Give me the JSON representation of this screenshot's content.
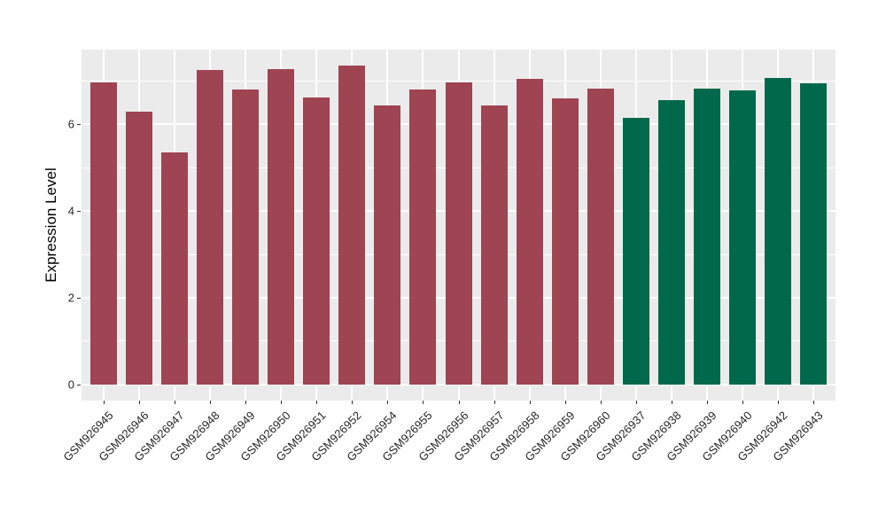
{
  "chart_data": {
    "type": "bar",
    "title": "",
    "xlabel": "",
    "ylabel": "Expression Level",
    "categories": [
      "GSM926945",
      "GSM926946",
      "GSM926947",
      "GSM926948",
      "GSM926949",
      "GSM926950",
      "GSM926951",
      "GSM926952",
      "GSM926954",
      "GSM926955",
      "GSM926956",
      "GSM926957",
      "GSM926958",
      "GSM926959",
      "GSM926960",
      "GSM926937",
      "GSM926938",
      "GSM926939",
      "GSM926940",
      "GSM926942",
      "GSM926943"
    ],
    "values": [
      6.96,
      6.29,
      5.34,
      7.25,
      6.8,
      7.27,
      6.62,
      7.35,
      6.43,
      6.8,
      6.96,
      6.43,
      7.04,
      6.6,
      6.82,
      6.15,
      6.56,
      6.82,
      6.78,
      7.06,
      6.94
    ],
    "bar_groups": [
      "group1",
      "group1",
      "group1",
      "group1",
      "group1",
      "group1",
      "group1",
      "group1",
      "group1",
      "group1",
      "group1",
      "group1",
      "group1",
      "group1",
      "group1",
      "group2",
      "group2",
      "group2",
      "group2",
      "group2",
      "group2"
    ],
    "group_colors": {
      "group1": "#9e4452",
      "group2": "#00694c"
    },
    "ylim": [
      -0.37,
      7.72
    ],
    "yticks_major": [
      0,
      2,
      4,
      6
    ],
    "yticks_minor": [
      1,
      3,
      5,
      7
    ],
    "grid": true,
    "legend": false,
    "panel_background": "#ebebeb",
    "grid_color": "#ffffff"
  }
}
